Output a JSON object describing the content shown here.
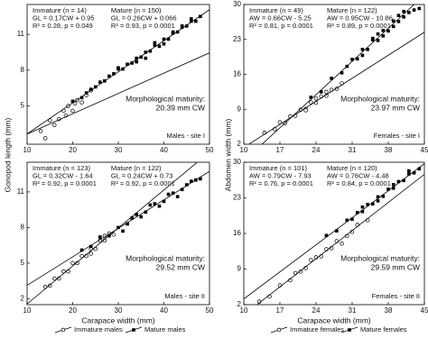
{
  "chart_data": [
    {
      "type": "scatter",
      "ylabel": "Gonopod length (mm)",
      "xlim": [
        10,
        50
      ],
      "xticks": [
        10,
        20,
        30,
        40,
        50
      ],
      "ylim": [
        1.8,
        13.5
      ],
      "yticks": [
        5,
        8,
        11
      ],
      "series": [
        {
          "color": "#000000",
          "marker": "circle",
          "x": [
            13,
            14,
            15,
            16,
            17,
            18,
            18.5,
            19,
            20,
            20.5,
            21,
            22,
            23,
            24
          ],
          "values": [
            2.9,
            2.3,
            3.8,
            3.4,
            3.9,
            4.6,
            4.2,
            5.0,
            4.6,
            5.2,
            5.5,
            5.3,
            5.9,
            6.3
          ]
        },
        {
          "color": "#000000",
          "marker": "square",
          "x": [
            20,
            22,
            23,
            24,
            25,
            26,
            27,
            28,
            29,
            30,
            31,
            32,
            33,
            34,
            35,
            36,
            37,
            38,
            39,
            40,
            41,
            42,
            43,
            44,
            45,
            46,
            47,
            48,
            36,
            40,
            44,
            30,
            34,
            38,
            42,
            46
          ],
          "values": [
            5.4,
            5.7,
            6.1,
            6.4,
            6.6,
            7.0,
            7.1,
            7.5,
            7.7,
            8.1,
            8.1,
            8.5,
            8.6,
            9.0,
            9.1,
            9.5,
            9.6,
            10.1,
            10.0,
            10.6,
            10.6,
            11.1,
            11.2,
            11.6,
            11.7,
            12.1,
            12.1,
            12.5,
            9.0,
            10.2,
            11.7,
            8.2,
            8.7,
            10.3,
            11.2,
            12.3
          ]
        }
      ],
      "lines": [
        {
          "slope": 0.17,
          "intercept": 0.95
        },
        {
          "slope": 0.26,
          "intercept": 0.066
        }
      ],
      "immature": {
        "label": "Immature (n = 14)",
        "equation": "GL = 0.17CW + 0.95",
        "stats": "R² = 0.28, p = 0.049"
      },
      "mature": {
        "label": "Mature (n = 150)",
        "equation": "GL = 0.26CW + 0.066",
        "stats": "R² = 0.93, p = 0.0001"
      },
      "maturity_label": "Morphological maturity:",
      "maturity_value": "20.39 mm CW",
      "site": "Males - site I"
    },
    {
      "type": "scatter",
      "ylabel": "Abdomen width (mm)",
      "xlim": [
        10,
        45
      ],
      "xticks": [
        10,
        17,
        24,
        31,
        38,
        45
      ],
      "ylim": [
        2,
        30
      ],
      "yticks": [
        2,
        9,
        16,
        23,
        30
      ],
      "series": [
        {
          "color": "#000000",
          "marker": "circle",
          "x": [
            14,
            16,
            17,
            18,
            19,
            20,
            21,
            22,
            23,
            24,
            25,
            26,
            27,
            28,
            29,
            22,
            24,
            26
          ],
          "values": [
            4.3,
            5.0,
            6.4,
            6.2,
            7.6,
            7.7,
            8.9,
            9.1,
            10.4,
            10.3,
            11.6,
            11.7,
            12.9,
            13.1,
            14.2,
            8.8,
            11.2,
            12.5
          ]
        },
        {
          "color": "#000000",
          "marker": "square",
          "x": [
            23,
            25,
            27,
            29,
            31,
            32,
            33,
            34,
            35,
            36,
            37,
            38,
            39,
            40,
            41,
            42,
            43,
            44,
            33,
            35,
            37,
            39,
            41,
            30,
            36,
            40
          ],
          "values": [
            11.4,
            12.5,
            15.2,
            16.3,
            19.0,
            19.1,
            21.0,
            21.0,
            22.9,
            22.8,
            24.8,
            24.7,
            26.7,
            26.6,
            28.6,
            28.4,
            28.9,
            29.2,
            19.8,
            23.2,
            23.7,
            25.6,
            27.5,
            17.6,
            24.1,
            27.8
          ]
        }
      ],
      "lines": [
        {
          "slope": 0.66,
          "intercept": -5.25
        },
        {
          "slope": 0.95,
          "intercept": -10.86
        }
      ],
      "immature": {
        "label": "Immature (n = 49)",
        "equation": "AW = 0.66CW - 5.25",
        "stats": "R² = 0.81, p = 0.0001"
      },
      "mature": {
        "label": "Mature (n = 122)",
        "equation": "AW = 0.95CW - 10.86",
        "stats": "R² = 0.89, p = 0.0001"
      },
      "maturity_label": "Morphological maturity:",
      "maturity_value": "23.97 mm CW",
      "site": "Females - site I"
    },
    {
      "type": "scatter",
      "xlabel": "Carapace width (mm)",
      "xlim": [
        10,
        50
      ],
      "xticks": [
        10,
        20,
        30,
        40,
        50
      ],
      "ylim": [
        1.5,
        13.5
      ],
      "yticks": [
        2,
        5,
        8,
        11
      ],
      "series": [
        {
          "name": "Immature males",
          "color": "#000000",
          "marker": "circle",
          "x": [
            14,
            15,
            16,
            17,
            18,
            19,
            20,
            21,
            22,
            23,
            24,
            25,
            26,
            27,
            28,
            29,
            24,
            27
          ],
          "values": [
            3.0,
            3.1,
            3.7,
            3.7,
            4.3,
            4.3,
            5.0,
            5.0,
            5.6,
            5.6,
            6.2,
            6.2,
            6.9,
            6.9,
            7.5,
            7.4,
            5.8,
            7.3
          ]
        },
        {
          "name": "Mature males",
          "color": "#000000",
          "marker": "square",
          "x": [
            22,
            24,
            26,
            28,
            30,
            32,
            34,
            36,
            38,
            40,
            42,
            44,
            46,
            48,
            31,
            33,
            35,
            37,
            39,
            41,
            43,
            45,
            47
          ],
          "values": [
            6.1,
            6.4,
            7.2,
            7.3,
            8.0,
            8.3,
            9.1,
            9.3,
            10.0,
            10.2,
            10.9,
            11.2,
            11.9,
            12.1,
            7.7,
            8.8,
            8.9,
            9.9,
            9.8,
            10.8,
            10.6,
            11.6,
            12.0
          ]
        }
      ],
      "lines": [
        {
          "slope": 0.32,
          "intercept": -1.64
        },
        {
          "slope": 0.24,
          "intercept": 0.73
        }
      ],
      "immature": {
        "label": "Immature (n = 123)",
        "equation": "GL = 0.32CW - 1.64",
        "stats": "R² = 0.92, p = 0.0001"
      },
      "mature": {
        "label": "Mature (n = 122)",
        "equation": "GL = 0.24CW + 0.73",
        "stats": "R² = 0.92, p = 0.0001"
      },
      "maturity_label": "Morphological maturity:",
      "maturity_value": "29.52 mm CW",
      "site": "Males - site II"
    },
    {
      "type": "scatter",
      "xlabel": "Carapace width (mm)",
      "xlim": [
        10,
        45
      ],
      "xticks": [
        10,
        17,
        24,
        31,
        38,
        45
      ],
      "ylim": [
        2,
        30
      ],
      "yticks": [
        2,
        9,
        16,
        23,
        30
      ],
      "series": [
        {
          "name": "Immature females",
          "color": "#000000",
          "marker": "circle",
          "x": [
            13,
            15,
            17,
            19,
            20,
            22,
            24,
            25,
            26,
            27,
            28,
            30,
            32,
            34,
            21,
            23,
            29,
            31
          ],
          "values": [
            2.6,
            3.6,
            5.8,
            6.8,
            8.2,
            9.2,
            11.3,
            11.5,
            12.9,
            13.1,
            14.5,
            15.5,
            17.7,
            18.6,
            8.5,
            10.8,
            14.0,
            16.3
          ]
        },
        {
          "name": "Mature females",
          "color": "#000000",
          "marker": "square",
          "x": [
            26,
            28,
            30,
            31,
            32,
            33,
            34,
            35,
            36,
            37,
            38,
            39,
            40,
            41,
            42,
            43,
            44,
            33,
            36,
            39,
            42
          ],
          "values": [
            15.6,
            16.5,
            18.6,
            18.8,
            20.1,
            20.3,
            21.7,
            21.8,
            23.2,
            23.3,
            24.7,
            24.9,
            26.2,
            26.4,
            27.7,
            27.9,
            28.7,
            21.2,
            22.4,
            25.6,
            28.3
          ]
        }
      ],
      "lines": [
        {
          "slope": 0.79,
          "intercept": -7.93
        },
        {
          "slope": 0.76,
          "intercept": -4.48
        }
      ],
      "immature": {
        "label": "Immature (n = 101)",
        "equation": "AW = 0.79CW - 7.93",
        "stats": "R² = 0.76, p = 0.0001"
      },
      "mature": {
        "label": "Mature (n = 120)",
        "equation": "AW = 0.76CW - 4.48",
        "stats": "R² = 0.84, p = 0.0001"
      },
      "maturity_label": "Morphological maturity:",
      "maturity_value": "29.59 mm CW",
      "site": "Females - site II"
    }
  ]
}
